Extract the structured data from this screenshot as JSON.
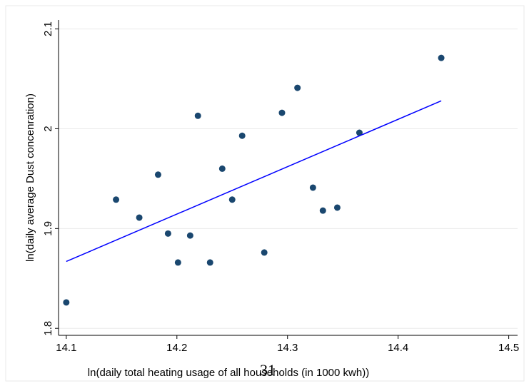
{
  "chart_data": {
    "type": "scatter",
    "x_label": "ln(daily total heating usage of all households (in 1000 kwh))",
    "y_label": "ln(daily average Dust concenration)",
    "page_number": "31",
    "xlim": [
      14.093,
      14.508
    ],
    "ylim": [
      1.793,
      2.109
    ],
    "xticks": [
      14.1,
      14.2,
      14.3,
      14.4,
      14.5
    ],
    "yticks": [
      1.8,
      1.9,
      2,
      2.1
    ],
    "grid": true,
    "series": [
      {
        "type": "scatter",
        "color": "#1a476f",
        "x": [
          14.1,
          14.145,
          14.166,
          14.183,
          14.192,
          14.201,
          14.212,
          14.219,
          14.23,
          14.241,
          14.25,
          14.259,
          14.279,
          14.295,
          14.309,
          14.323,
          14.332,
          14.345,
          14.365,
          14.439
        ],
        "values": [
          1.826,
          1.929,
          1.911,
          1.954,
          1.895,
          1.866,
          1.893,
          2.013,
          1.866,
          1.96,
          1.929,
          1.993,
          1.876,
          2.016,
          2.041,
          1.941,
          1.918,
          1.921,
          1.996,
          2.071
        ]
      },
      {
        "type": "line",
        "color": "#0000ff",
        "x": [
          14.1,
          14.439
        ],
        "values": [
          1.867,
          2.028
        ]
      }
    ]
  }
}
